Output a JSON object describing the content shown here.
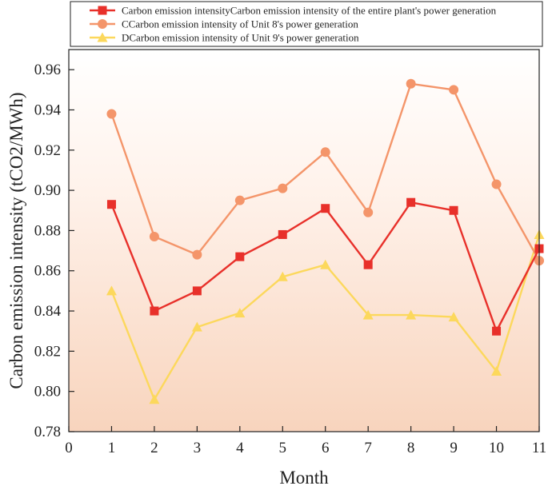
{
  "chart_data": {
    "type": "line",
    "title": "",
    "xlabel": "Month",
    "ylabel": "Carbon emission intensity (tCO2/MWh)",
    "xlim": [
      0,
      11
    ],
    "ylim": [
      0.78,
      0.97
    ],
    "x_ticks": [
      0,
      1,
      2,
      3,
      4,
      5,
      6,
      7,
      8,
      9,
      10,
      11
    ],
    "y_ticks": [
      0.78,
      0.8,
      0.82,
      0.84,
      0.86,
      0.88,
      0.9,
      0.92,
      0.94,
      0.96
    ],
    "x_tick_labels": [
      "0",
      "1",
      "2",
      "3",
      "4",
      "5",
      "6",
      "7",
      "8",
      "9",
      "10",
      "11"
    ],
    "y_tick_labels": [
      "0.78",
      "0.80",
      "0.82",
      "0.84",
      "0.86",
      "0.88",
      "0.90",
      "0.92",
      "0.94",
      "0.96"
    ],
    "legend_position": "top",
    "background": "orange-to-white vertical gradient",
    "series": [
      {
        "name": "Carbon emission intensityCarbon emission intensity of the entire plant's power generation",
        "marker": "square",
        "color": "#e8302a",
        "x": [
          1,
          2,
          3,
          4,
          5,
          6,
          7,
          8,
          9,
          10,
          11
        ],
        "values": [
          0.893,
          0.84,
          0.85,
          0.867,
          0.878,
          0.891,
          0.863,
          0.894,
          0.89,
          0.83,
          0.871
        ]
      },
      {
        "name": "CCarbon emission intensity of Unit 8's power generation",
        "marker": "circle",
        "color": "#f4956a",
        "x": [
          1,
          2,
          3,
          4,
          5,
          6,
          7,
          8,
          9,
          10,
          11
        ],
        "values": [
          0.938,
          0.877,
          0.868,
          0.895,
          0.901,
          0.919,
          0.889,
          0.953,
          0.95,
          0.903,
          0.865
        ]
      },
      {
        "name": "DCarbon emission intensity of Unit 9's power generation",
        "marker": "triangle",
        "color": "#fcd85c",
        "x": [
          1,
          2,
          3,
          4,
          5,
          6,
          7,
          8,
          9,
          10,
          11
        ],
        "values": [
          0.85,
          0.796,
          0.832,
          0.839,
          0.857,
          0.863,
          0.838,
          0.838,
          0.837,
          0.81,
          0.878
        ]
      }
    ]
  }
}
